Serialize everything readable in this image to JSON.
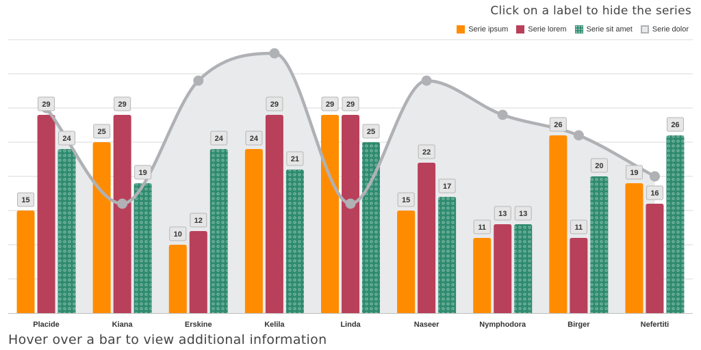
{
  "hints": {
    "top": "Click on a label to hide the series",
    "bottom": "Hover over a bar to view additional information"
  },
  "colors": {
    "serie_ipsum": "#ff8c00",
    "serie_lorem": "#b9405a",
    "serie_sit_amet": "#2e8b6e",
    "serie_dolor": "#b0b1b5",
    "area_fill": "#e9eaec",
    "grid": "#d9d9d9"
  },
  "chart_data": {
    "type": "bar",
    "title": "",
    "xlabel": "",
    "ylabel": "",
    "ylim": [
      0,
      40
    ],
    "grid": true,
    "legend": "top-right",
    "categories": [
      "Placide",
      "Kiana",
      "Erskine",
      "Kelila",
      "Linda",
      "Naseer",
      "Nymphodora",
      "Birger",
      "Nefertiti"
    ],
    "series": [
      {
        "name": "Serie ipsum",
        "type": "bar",
        "values": [
          15,
          25,
          10,
          24,
          29,
          15,
          11,
          26,
          19
        ]
      },
      {
        "name": "Serie lorem",
        "type": "bar",
        "values": [
          29,
          29,
          12,
          29,
          29,
          22,
          13,
          11,
          16
        ]
      },
      {
        "name": "Serie sit amet",
        "type": "bar",
        "pattern": "dots",
        "values": [
          24,
          19,
          24,
          21,
          25,
          17,
          13,
          20,
          26
        ]
      },
      {
        "name": "Serie dolor",
        "type": "area-spline",
        "values": [
          30,
          16,
          34,
          38,
          16,
          34,
          29,
          26,
          20
        ]
      }
    ]
  }
}
